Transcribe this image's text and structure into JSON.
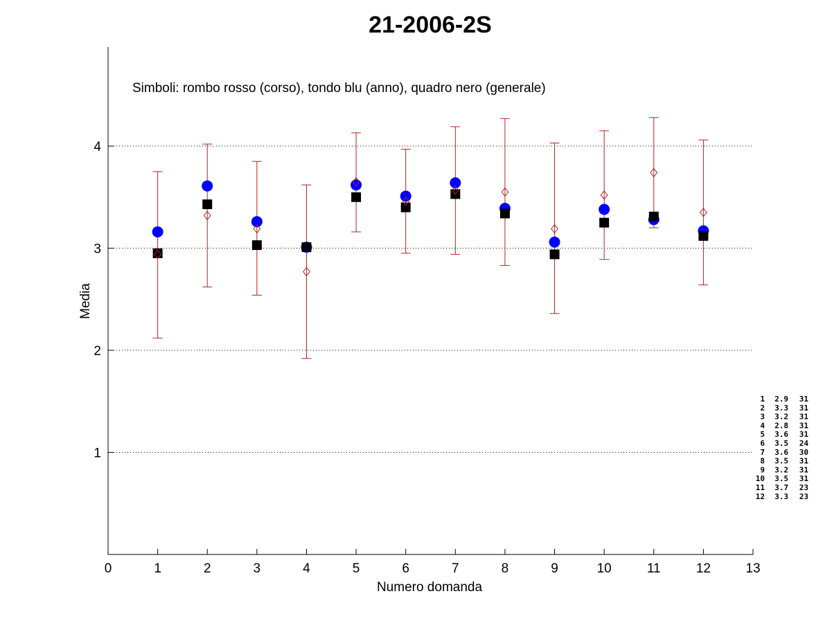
{
  "chart_data": {
    "type": "scatter",
    "title": "21-2006-2S",
    "xlabel": "Numero domanda",
    "ylabel": "Media",
    "xlim": [
      0,
      13
    ],
    "ylim": [
      0,
      4.97
    ],
    "x_ticks": [
      "0",
      "1",
      "2",
      "3",
      "4",
      "5",
      "6",
      "7",
      "8",
      "9",
      "10",
      "11",
      "12",
      "13"
    ],
    "y_ticks": [
      "1",
      "2",
      "3",
      "4"
    ],
    "y_tick_values": [
      1,
      2,
      3,
      4
    ],
    "grid": "horizontal dotted",
    "annotation": "Simboli: rombo rosso (corso), tondo blu (anno), quadro nero (generale)",
    "x": [
      1,
      2,
      3,
      4,
      5,
      6,
      7,
      8,
      9,
      10,
      11,
      12
    ],
    "series": [
      {
        "marker": "diamond",
        "color": "#b22222",
        "values": [
          2.94,
          3.32,
          3.19,
          2.77,
          3.65,
          3.46,
          3.57,
          3.55,
          3.19,
          3.52,
          3.74,
          3.35
        ],
        "error_low": [
          2.12,
          2.62,
          2.54,
          1.92,
          3.16,
          2.95,
          2.94,
          2.83,
          2.36,
          2.89,
          3.2,
          2.64
        ],
        "error_high": [
          3.75,
          4.02,
          3.85,
          3.62,
          4.13,
          3.97,
          4.19,
          4.27,
          4.03,
          4.15,
          4.28,
          4.06
        ]
      },
      {
        "marker": "circle",
        "color": "#0000ff",
        "values": [
          3.16,
          3.61,
          3.26,
          3.01,
          3.62,
          3.51,
          3.64,
          3.39,
          3.06,
          3.38,
          3.28,
          3.17
        ]
      },
      {
        "marker": "square",
        "color": "#000000",
        "values": [
          2.95,
          3.43,
          3.03,
          3.01,
          3.5,
          3.4,
          3.53,
          3.34,
          2.94,
          3.25,
          3.31,
          3.12
        ]
      }
    ],
    "side_table": [
      "1  2.9  31",
      "2  3.3  31",
      "3  3.2  31",
      "4  2.8  31",
      "5  3.6  31",
      "6  3.5  24",
      "7  3.6  30",
      "8  3.5  31",
      "9  3.2  31",
      "10  3.5  31",
      "11  3.7  23",
      "12  3.3  23"
    ]
  }
}
